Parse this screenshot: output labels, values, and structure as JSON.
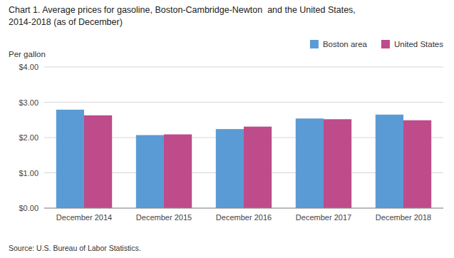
{
  "chart_data": {
    "type": "bar",
    "title": "Chart 1. Average prices for gasoline, Boston-Cambridge-Newton  and the United States,",
    "subtitle": "2014-2018 (as of December)",
    "y_label": "Per gallon",
    "annotations": [
      "Source: U.S. Bureau of Labor Statistics."
    ],
    "categories": [
      "December 2014",
      "December 2015",
      "December 2016",
      "December 2017",
      "December 2018"
    ],
    "series": [
      {
        "name": "Boston area",
        "color": "#5B9BD5",
        "values": [
          2.79,
          2.07,
          2.24,
          2.54,
          2.65
        ]
      },
      {
        "name": "United States",
        "color": "#BE4B8A",
        "values": [
          2.63,
          2.09,
          2.31,
          2.52,
          2.49
        ]
      }
    ],
    "ylim": [
      0,
      4.0
    ],
    "yticks": [
      {
        "value": 0.0,
        "label": "$0.00"
      },
      {
        "value": 1.0,
        "label": "$1.00"
      },
      {
        "value": 2.0,
        "label": "$2.00"
      },
      {
        "value": 3.0,
        "label": "$3.00"
      },
      {
        "value": 4.0,
        "label": "$4.00"
      }
    ],
    "grid": true,
    "legend": "upper right"
  }
}
